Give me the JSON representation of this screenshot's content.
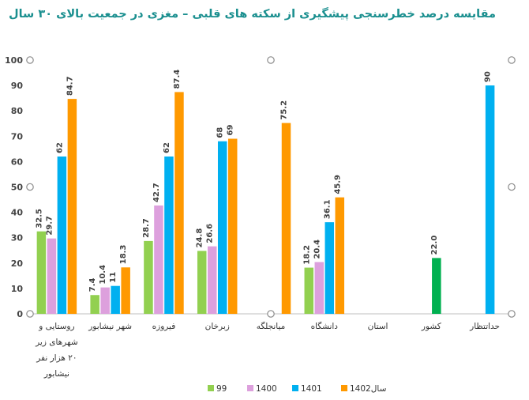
{
  "chart_data": {
    "type": "bar",
    "title": "مقایسه درصد خطرسنجی پیشگیری از سکته های قلبی – مغزی در جمعیت بالای ۳۰ سال",
    "categories": [
      [
        "روستایی و",
        "شهرهای زیر",
        "۲۰ هزار نفر",
        "نیشابور"
      ],
      [
        "شهر نیشابور"
      ],
      [
        "فیروزه"
      ],
      [
        "زبرخان"
      ],
      [
        "میانجلگه"
      ],
      [
        "دانشگاه"
      ],
      [
        "استان"
      ],
      [
        "کشور"
      ],
      [
        "حداتتظار"
      ]
    ],
    "series": [
      {
        "name": "99",
        "color": "#92d050",
        "values": [
          32.5,
          7.4,
          28.7,
          24.8,
          null,
          18.2,
          null,
          null,
          null
        ],
        "labels": [
          "32.5",
          "7.4",
          "28.7",
          "24.8",
          null,
          "18.2",
          null,
          null,
          null
        ]
      },
      {
        "name": "1400",
        "color": "#dda0dd",
        "values": [
          29.7,
          10.4,
          42.7,
          26.6,
          null,
          20.4,
          null,
          null,
          null
        ],
        "labels": [
          "29.7",
          "10.4",
          "42.7",
          "26.6",
          null,
          "20.4",
          null,
          null,
          null
        ]
      },
      {
        "name": "1401",
        "color": "#00b0f0",
        "values": [
          62,
          11,
          62,
          68,
          null,
          36.1,
          null,
          22.0,
          90
        ],
        "labels": [
          "62",
          "11",
          "62",
          "68",
          null,
          "36.1",
          null,
          "22.0",
          "90"
        ],
        "overrides": {
          "7": "#00b050"
        }
      },
      {
        "name": "سال1402",
        "color": "#ff9900",
        "values": [
          84.7,
          18.3,
          87.4,
          69,
          75.2,
          45.9,
          null,
          null,
          null
        ],
        "labels": [
          "84.7",
          "18.3",
          "87.4",
          "69",
          "75.2",
          "45.9",
          null,
          null,
          null
        ]
      }
    ],
    "y_ticks": [
      "0",
      "10",
      "20",
      "30",
      "40",
      "50",
      "60",
      "70",
      "80",
      "90",
      "100"
    ],
    "ylim": [
      0,
      100
    ],
    "legend_position": "bottom",
    "grid": false
  }
}
